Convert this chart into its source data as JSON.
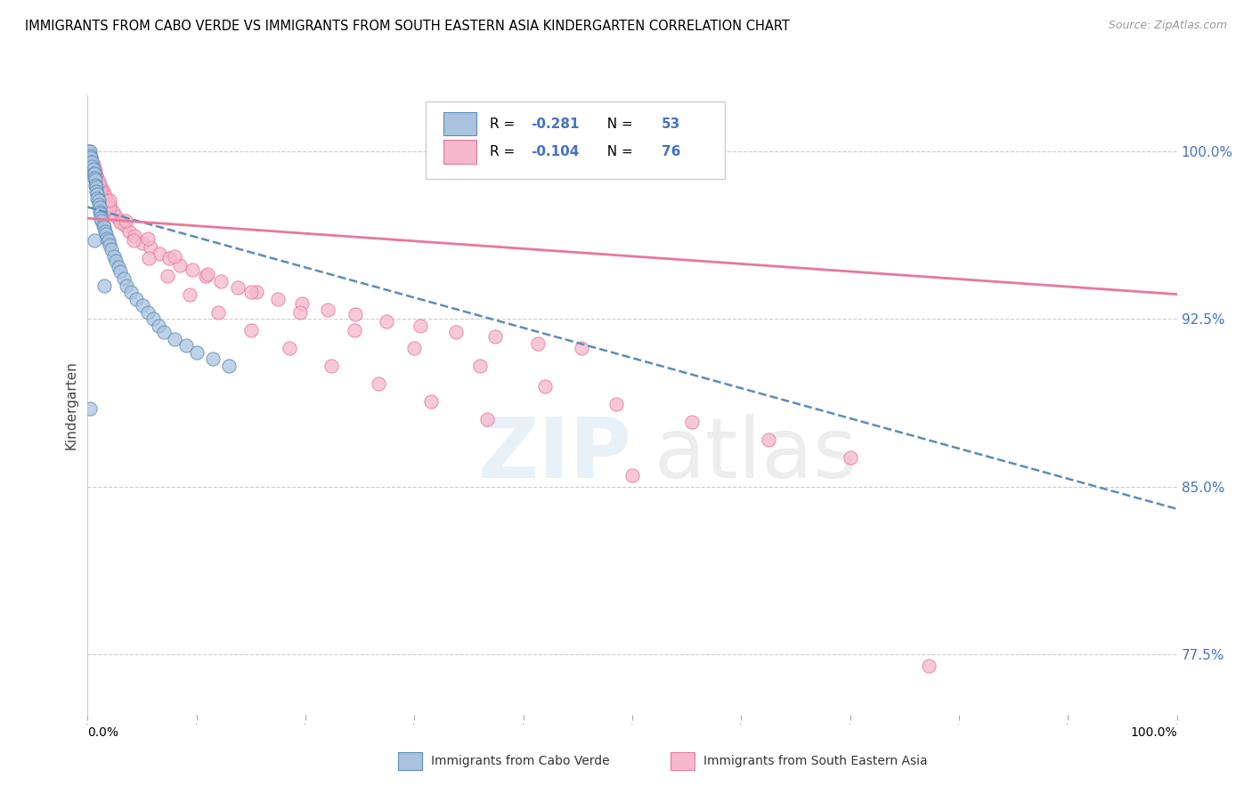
{
  "title": "IMMIGRANTS FROM CABO VERDE VS IMMIGRANTS FROM SOUTH EASTERN ASIA KINDERGARTEN CORRELATION CHART",
  "source": "Source: ZipAtlas.com",
  "ylabel": "Kindergarten",
  "r1": -0.281,
  "n1": 53,
  "r2": -0.104,
  "n2": 76,
  "legend_label1": "Immigrants from Cabo Verde",
  "legend_label2": "Immigrants from South Eastern Asia",
  "color1": "#aac4e0",
  "color2": "#f5b8cc",
  "trendline1_color": "#5b8db8",
  "trendline2_color": "#e8789a",
  "xmin": 0.0,
  "xmax": 1.0,
  "ymin": 0.748,
  "ymax": 1.025,
  "y_tick_labels": [
    "77.5%",
    "85.0%",
    "92.5%",
    "100.0%"
  ],
  "y_tick_values": [
    0.775,
    0.85,
    0.925,
    1.0
  ],
  "trendline1_x": [
    0.0,
    1.0
  ],
  "trendline1_y": [
    0.975,
    0.84
  ],
  "trendline2_x": [
    0.0,
    1.0
  ],
  "trendline2_y": [
    0.97,
    0.936
  ],
  "cabo_verde_x": [
    0.001,
    0.002,
    0.002,
    0.003,
    0.003,
    0.004,
    0.004,
    0.005,
    0.005,
    0.006,
    0.006,
    0.007,
    0.007,
    0.008,
    0.008,
    0.009,
    0.009,
    0.01,
    0.01,
    0.011,
    0.011,
    0.012,
    0.012,
    0.013,
    0.014,
    0.015,
    0.016,
    0.017,
    0.018,
    0.019,
    0.02,
    0.022,
    0.024,
    0.026,
    0.028,
    0.03,
    0.033,
    0.036,
    0.04,
    0.045,
    0.05,
    0.055,
    0.06,
    0.065,
    0.07,
    0.08,
    0.09,
    0.1,
    0.115,
    0.13,
    0.002,
    0.006,
    0.015
  ],
  "cabo_verde_y": [
    1.0,
    1.0,
    0.998,
    0.997,
    0.995,
    0.995,
    0.993,
    0.992,
    0.99,
    0.99,
    0.988,
    0.987,
    0.985,
    0.984,
    0.982,
    0.981,
    0.979,
    0.978,
    0.976,
    0.975,
    0.973,
    0.972,
    0.97,
    0.969,
    0.967,
    0.966,
    0.964,
    0.963,
    0.961,
    0.96,
    0.958,
    0.956,
    0.953,
    0.951,
    0.948,
    0.946,
    0.943,
    0.94,
    0.937,
    0.934,
    0.931,
    0.928,
    0.925,
    0.922,
    0.919,
    0.916,
    0.913,
    0.91,
    0.907,
    0.904,
    0.885,
    0.96,
    0.94
  ],
  "sea_x": [
    0.001,
    0.002,
    0.003,
    0.004,
    0.005,
    0.006,
    0.007,
    0.008,
    0.009,
    0.01,
    0.012,
    0.014,
    0.016,
    0.018,
    0.02,
    0.023,
    0.026,
    0.03,
    0.034,
    0.038,
    0.043,
    0.05,
    0.058,
    0.066,
    0.075,
    0.085,
    0.096,
    0.108,
    0.122,
    0.138,
    0.155,
    0.175,
    0.197,
    0.22,
    0.246,
    0.274,
    0.305,
    0.338,
    0.374,
    0.413,
    0.453,
    0.002,
    0.006,
    0.012,
    0.02,
    0.03,
    0.042,
    0.056,
    0.073,
    0.094,
    0.12,
    0.15,
    0.185,
    0.224,
    0.267,
    0.315,
    0.367,
    0.004,
    0.01,
    0.02,
    0.035,
    0.055,
    0.08,
    0.11,
    0.15,
    0.195,
    0.245,
    0.3,
    0.36,
    0.42,
    0.485,
    0.555,
    0.625,
    0.7,
    0.5,
    0.772
  ],
  "sea_y": [
    1.0,
    0.998,
    0.997,
    0.995,
    0.994,
    0.992,
    0.991,
    0.989,
    0.988,
    0.986,
    0.984,
    0.982,
    0.98,
    0.978,
    0.976,
    0.973,
    0.971,
    0.969,
    0.967,
    0.964,
    0.962,
    0.959,
    0.957,
    0.954,
    0.952,
    0.949,
    0.947,
    0.944,
    0.942,
    0.939,
    0.937,
    0.934,
    0.932,
    0.929,
    0.927,
    0.924,
    0.922,
    0.919,
    0.917,
    0.914,
    0.912,
    0.996,
    0.99,
    0.983,
    0.975,
    0.968,
    0.96,
    0.952,
    0.944,
    0.936,
    0.928,
    0.92,
    0.912,
    0.904,
    0.896,
    0.888,
    0.88,
    0.993,
    0.986,
    0.978,
    0.969,
    0.961,
    0.953,
    0.945,
    0.937,
    0.928,
    0.92,
    0.912,
    0.904,
    0.895,
    0.887,
    0.879,
    0.871,
    0.863,
    0.855,
    0.77
  ]
}
